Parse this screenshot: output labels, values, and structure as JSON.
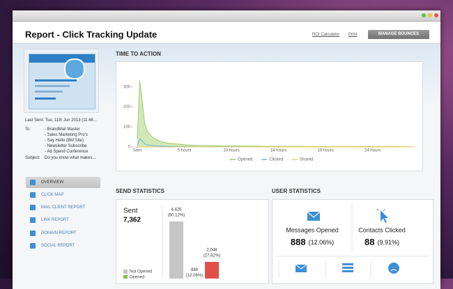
{
  "header": {
    "title": "Report - Click Tracking Update",
    "links": [
      "ROI Calculator",
      "Print"
    ],
    "button": "MANAGE BOUNCES"
  },
  "sidebar": {
    "last_sent": "Last Sent: Tue, 11th Jun 2013 (11:46...",
    "to_label": "To:",
    "recipients": [
      "- BrandMail Master",
      "- Sales Marketing Pro's",
      "- Say Hello (BM Site)",
      "- Newsletter Subscribe",
      "- Ad Spend Conference"
    ],
    "subject_label": "Subject:",
    "subject": "Do you know what makes...",
    "nav": [
      {
        "label": "OVERVIEW",
        "selected": true
      },
      {
        "label": "CLICK MAP",
        "selected": false
      },
      {
        "label": "MAIL CLIENT REPORT",
        "selected": false
      },
      {
        "label": "LINK REPORT",
        "selected": false
      },
      {
        "label": "DOMAIN REPORT",
        "selected": false
      },
      {
        "label": "SOCIAL REPORT",
        "selected": false
      }
    ]
  },
  "time_to_action": {
    "title": "TIME TO ACTION",
    "chart": {
      "type": "line",
      "x": [
        0,
        0.25,
        0.5,
        0.75,
        1,
        1.5,
        2,
        2.5,
        3,
        4,
        5,
        6,
        7,
        8,
        9,
        10,
        11,
        12,
        13,
        14,
        16,
        18,
        20,
        22,
        24,
        26,
        28
      ],
      "xlim": [
        0,
        28.5
      ],
      "xticks": [
        {
          "value": 0,
          "label": "Sent"
        },
        {
          "value": 4.8,
          "label": "5 hours"
        },
        {
          "value": 9.6,
          "label": "10 hours"
        },
        {
          "value": 14.4,
          "label": "14 hours"
        },
        {
          "value": 19.2,
          "label": "19 hours"
        },
        {
          "value": 24,
          "label": "24 hours"
        }
      ],
      "ylim": [
        0,
        400
      ],
      "yticks": [
        0,
        100,
        200,
        300
      ],
      "series": [
        {
          "name": "Opened",
          "color": "#9ccb64",
          "area": true,
          "values": [
            40,
            330,
            230,
            120,
            80,
            50,
            35,
            25,
            20,
            15,
            10,
            8,
            7,
            6,
            5,
            5,
            4,
            4,
            3,
            3,
            3,
            2,
            2,
            2,
            2,
            2,
            1
          ]
        },
        {
          "name": "Clicked",
          "color": "#6fb3da",
          "area": false,
          "values": [
            5,
            40,
            30,
            15,
            10,
            7,
            5,
            4,
            3,
            2,
            2,
            1,
            1,
            1,
            1,
            1,
            1,
            0,
            0,
            0,
            0,
            0,
            0,
            0,
            0,
            0,
            0
          ]
        },
        {
          "name": "Shared",
          "color": "#f0d26b",
          "area": false,
          "values": [
            0,
            2,
            1,
            1,
            0,
            0,
            0,
            0,
            0,
            0,
            0,
            0,
            0,
            0,
            0,
            0,
            0,
            0,
            0,
            0,
            0,
            0,
            0,
            0,
            0,
            0,
            0
          ]
        }
      ]
    }
  },
  "send_statistics": {
    "title": "SEND STATISTICS",
    "sent_label": "Sent",
    "sent_total": "7,362",
    "bars": [
      {
        "value": 4426,
        "label": "4,426",
        "percent": "(60.12%)",
        "color": "#c6c6c6"
      },
      {
        "value": 888,
        "label": "888",
        "percent": "(12.06%)",
        "color": "#7dc242"
      },
      {
        "value": 2048,
        "label": "2,048",
        "percent": "(27.82%)",
        "color": "#e0504a"
      }
    ],
    "legend": [
      {
        "name": "Not Opened",
        "color": "#c6c6c6"
      },
      {
        "name": "Opened",
        "color": "#7dc242"
      }
    ]
  },
  "user_statistics": {
    "title": "USER STATISTICS",
    "cards": [
      {
        "label": "Messages Opened",
        "count": "888",
        "percent": "(12.06%)"
      },
      {
        "label": "Contacts Clicked",
        "count": "88",
        "percent": "(9.91%)"
      }
    ]
  }
}
